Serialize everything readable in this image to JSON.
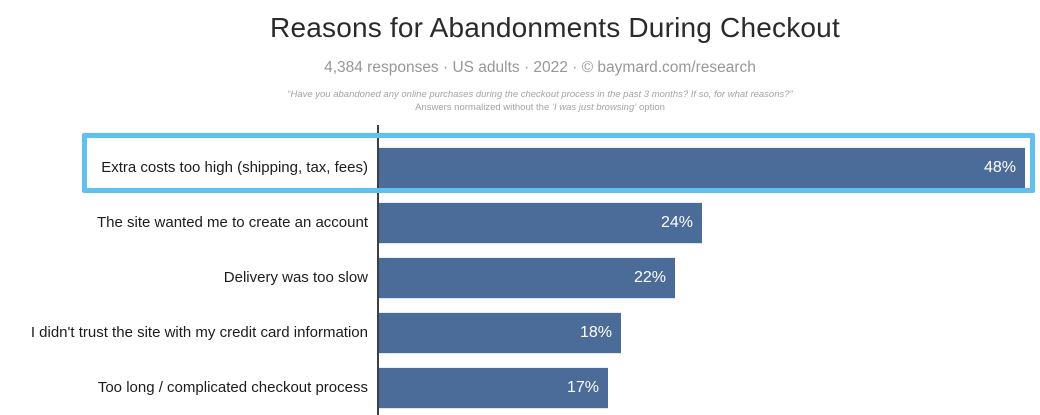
{
  "chart_data": {
    "type": "bar",
    "orientation": "horizontal",
    "title": "Reasons for Abandonments During Checkout",
    "subtitle": "4,384 responses · US adults · 2022 · © baymard.com/research",
    "note_line1": "“Have you abandoned any online purchases during the checkout process in the past 3 months? If so, for what reasons?”",
    "note_line2_prefix": "Answers normalized without the ",
    "note_line2_italic": "‘I was just browsing’",
    "note_line2_suffix": " option",
    "categories": [
      "Extra costs too high (shipping, tax, fees)",
      "The site wanted me to create an account",
      "Delivery was too slow",
      "I didn't trust the site with my credit card information",
      "Too long / complicated checkout process"
    ],
    "values": [
      48,
      24,
      22,
      18,
      17
    ],
    "value_labels": [
      "48%",
      "24%",
      "22%",
      "18%",
      "17%"
    ],
    "xlim": [
      0,
      48
    ],
    "highlighted_index": 0,
    "legend": "none",
    "grid": false,
    "colors": {
      "bar": "#4b6c99",
      "highlight_border": "#5fc1ef",
      "axis": "#3f3f3f",
      "title": "#2a2a2a",
      "subtitle": "#979797",
      "note": "#a3a3a3",
      "bar_value_text": "#ffffff"
    }
  }
}
